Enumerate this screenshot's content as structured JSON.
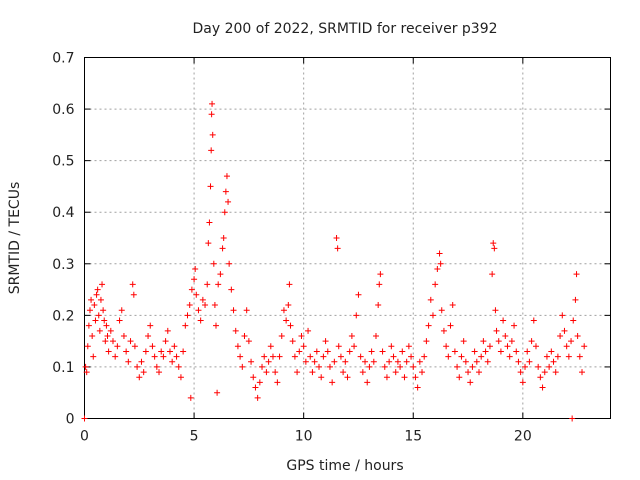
{
  "chart_data": {
    "type": "scatter",
    "title": "Day 200 of 2022, SRMTID for receiver p392",
    "xlabel": "GPS time / hours",
    "ylabel": "SRMTID / TECUs",
    "xlim": [
      0,
      24
    ],
    "ylim": [
      0,
      0.7
    ],
    "xticks": [
      0,
      5,
      10,
      15,
      20
    ],
    "yticks": [
      0,
      0.1,
      0.2,
      0.3,
      0.4,
      0.5,
      0.6,
      0.7
    ],
    "xtick_labels": [
      "0",
      "5",
      "10",
      "15",
      "20"
    ],
    "ytick_labels": [
      "0",
      "0.1",
      "0.2",
      "0.3",
      "0.4",
      "0.5",
      "0.6",
      "0.7"
    ],
    "grid": true,
    "marker": "+",
    "marker_color": "#ff0000",
    "series": [
      {
        "name": "SRMTID",
        "points": [
          [
            0.0,
            0.0
          ],
          [
            0.05,
            0.1
          ],
          [
            0.1,
            0.09
          ],
          [
            0.15,
            0.14
          ],
          [
            0.2,
            0.18
          ],
          [
            0.25,
            0.21
          ],
          [
            0.3,
            0.23
          ],
          [
            0.35,
            0.16
          ],
          [
            0.4,
            0.12
          ],
          [
            0.45,
            0.22
          ],
          [
            0.5,
            0.19
          ],
          [
            0.55,
            0.24
          ],
          [
            0.6,
            0.25
          ],
          [
            0.65,
            0.2
          ],
          [
            0.7,
            0.17
          ],
          [
            0.75,
            0.23
          ],
          [
            0.8,
            0.26
          ],
          [
            0.85,
            0.21
          ],
          [
            0.9,
            0.19
          ],
          [
            0.95,
            0.15
          ],
          [
            1.0,
            0.18
          ],
          [
            1.05,
            0.16
          ],
          [
            1.1,
            0.13
          ],
          [
            1.2,
            0.17
          ],
          [
            1.3,
            0.15
          ],
          [
            1.4,
            0.12
          ],
          [
            1.5,
            0.14
          ],
          [
            1.6,
            0.19
          ],
          [
            1.7,
            0.21
          ],
          [
            1.8,
            0.16
          ],
          [
            1.9,
            0.13
          ],
          [
            2.0,
            0.11
          ],
          [
            2.1,
            0.15
          ],
          [
            2.2,
            0.26
          ],
          [
            2.25,
            0.24
          ],
          [
            2.3,
            0.14
          ],
          [
            2.4,
            0.1
          ],
          [
            2.5,
            0.08
          ],
          [
            2.6,
            0.11
          ],
          [
            2.7,
            0.09
          ],
          [
            2.8,
            0.13
          ],
          [
            2.9,
            0.16
          ],
          [
            3.0,
            0.18
          ],
          [
            3.1,
            0.14
          ],
          [
            3.2,
            0.12
          ],
          [
            3.3,
            0.1
          ],
          [
            3.4,
            0.09
          ],
          [
            3.5,
            0.13
          ],
          [
            3.6,
            0.12
          ],
          [
            3.7,
            0.15
          ],
          [
            3.8,
            0.17
          ],
          [
            3.9,
            0.13
          ],
          [
            4.0,
            0.11
          ],
          [
            4.1,
            0.14
          ],
          [
            4.2,
            0.12
          ],
          [
            4.3,
            0.1
          ],
          [
            4.4,
            0.08
          ],
          [
            4.5,
            0.13
          ],
          [
            4.6,
            0.18
          ],
          [
            4.7,
            0.2
          ],
          [
            4.8,
            0.22
          ],
          [
            4.85,
            0.04
          ],
          [
            4.9,
            0.25
          ],
          [
            5.0,
            0.27
          ],
          [
            5.05,
            0.29
          ],
          [
            5.1,
            0.24
          ],
          [
            5.2,
            0.21
          ],
          [
            5.3,
            0.19
          ],
          [
            5.4,
            0.23
          ],
          [
            5.5,
            0.22
          ],
          [
            5.6,
            0.26
          ],
          [
            5.65,
            0.34
          ],
          [
            5.7,
            0.38
          ],
          [
            5.75,
            0.45
          ],
          [
            5.78,
            0.52
          ],
          [
            5.8,
            0.59
          ],
          [
            5.82,
            0.61
          ],
          [
            5.85,
            0.55
          ],
          [
            5.9,
            0.3
          ],
          [
            5.95,
            0.22
          ],
          [
            6.0,
            0.18
          ],
          [
            6.05,
            0.05
          ],
          [
            6.1,
            0.26
          ],
          [
            6.2,
            0.28
          ],
          [
            6.3,
            0.33
          ],
          [
            6.35,
            0.35
          ],
          [
            6.4,
            0.4
          ],
          [
            6.45,
            0.44
          ],
          [
            6.5,
            0.47
          ],
          [
            6.55,
            0.42
          ],
          [
            6.6,
            0.3
          ],
          [
            6.7,
            0.25
          ],
          [
            6.8,
            0.21
          ],
          [
            6.9,
            0.17
          ],
          [
            7.0,
            0.14
          ],
          [
            7.1,
            0.12
          ],
          [
            7.2,
            0.1
          ],
          [
            7.3,
            0.16
          ],
          [
            7.4,
            0.21
          ],
          [
            7.5,
            0.15
          ],
          [
            7.6,
            0.11
          ],
          [
            7.7,
            0.08
          ],
          [
            7.8,
            0.06
          ],
          [
            7.9,
            0.04
          ],
          [
            8.0,
            0.07
          ],
          [
            8.1,
            0.1
          ],
          [
            8.2,
            0.12
          ],
          [
            8.3,
            0.09
          ],
          [
            8.4,
            0.11
          ],
          [
            8.5,
            0.14
          ],
          [
            8.6,
            0.12
          ],
          [
            8.7,
            0.09
          ],
          [
            8.8,
            0.07
          ],
          [
            8.9,
            0.12
          ],
          [
            9.0,
            0.16
          ],
          [
            9.1,
            0.21
          ],
          [
            9.2,
            0.19
          ],
          [
            9.3,
            0.22
          ],
          [
            9.35,
            0.26
          ],
          [
            9.4,
            0.18
          ],
          [
            9.5,
            0.15
          ],
          [
            9.6,
            0.12
          ],
          [
            9.7,
            0.09
          ],
          [
            9.8,
            0.13
          ],
          [
            9.9,
            0.16
          ],
          [
            10.0,
            0.14
          ],
          [
            10.1,
            0.11
          ],
          [
            10.2,
            0.17
          ],
          [
            10.3,
            0.12
          ],
          [
            10.4,
            0.09
          ],
          [
            10.5,
            0.11
          ],
          [
            10.6,
            0.13
          ],
          [
            10.7,
            0.1
          ],
          [
            10.8,
            0.08
          ],
          [
            10.9,
            0.12
          ],
          [
            11.0,
            0.15
          ],
          [
            11.1,
            0.13
          ],
          [
            11.2,
            0.1
          ],
          [
            11.3,
            0.07
          ],
          [
            11.4,
            0.11
          ],
          [
            11.5,
            0.35
          ],
          [
            11.55,
            0.33
          ],
          [
            11.6,
            0.14
          ],
          [
            11.7,
            0.12
          ],
          [
            11.8,
            0.09
          ],
          [
            11.9,
            0.11
          ],
          [
            12.0,
            0.08
          ],
          [
            12.1,
            0.13
          ],
          [
            12.2,
            0.16
          ],
          [
            12.3,
            0.14
          ],
          [
            12.4,
            0.2
          ],
          [
            12.5,
            0.24
          ],
          [
            12.6,
            0.12
          ],
          [
            12.7,
            0.09
          ],
          [
            12.8,
            0.11
          ],
          [
            12.9,
            0.07
          ],
          [
            13.0,
            0.1
          ],
          [
            13.1,
            0.13
          ],
          [
            13.2,
            0.11
          ],
          [
            13.3,
            0.16
          ],
          [
            13.4,
            0.22
          ],
          [
            13.45,
            0.26
          ],
          [
            13.5,
            0.28
          ],
          [
            13.6,
            0.13
          ],
          [
            13.7,
            0.1
          ],
          [
            13.8,
            0.08
          ],
          [
            13.9,
            0.11
          ],
          [
            14.0,
            0.14
          ],
          [
            14.1,
            0.12
          ],
          [
            14.2,
            0.09
          ],
          [
            14.3,
            0.11
          ],
          [
            14.4,
            0.1
          ],
          [
            14.5,
            0.13
          ],
          [
            14.6,
            0.08
          ],
          [
            14.7,
            0.11
          ],
          [
            14.8,
            0.14
          ],
          [
            14.9,
            0.12
          ],
          [
            15.0,
            0.1
          ],
          [
            15.1,
            0.08
          ],
          [
            15.2,
            0.06
          ],
          [
            15.3,
            0.11
          ],
          [
            15.4,
            0.09
          ],
          [
            15.5,
            0.12
          ],
          [
            15.6,
            0.15
          ],
          [
            15.7,
            0.18
          ],
          [
            15.8,
            0.23
          ],
          [
            15.9,
            0.2
          ],
          [
            16.0,
            0.26
          ],
          [
            16.1,
            0.29
          ],
          [
            16.2,
            0.32
          ],
          [
            16.25,
            0.3
          ],
          [
            16.3,
            0.21
          ],
          [
            16.4,
            0.17
          ],
          [
            16.5,
            0.14
          ],
          [
            16.6,
            0.12
          ],
          [
            16.7,
            0.18
          ],
          [
            16.8,
            0.22
          ],
          [
            16.9,
            0.13
          ],
          [
            17.0,
            0.1
          ],
          [
            17.1,
            0.08
          ],
          [
            17.2,
            0.12
          ],
          [
            17.3,
            0.15
          ],
          [
            17.4,
            0.11
          ],
          [
            17.5,
            0.09
          ],
          [
            17.6,
            0.07
          ],
          [
            17.7,
            0.1
          ],
          [
            17.8,
            0.13
          ],
          [
            17.9,
            0.11
          ],
          [
            18.0,
            0.09
          ],
          [
            18.1,
            0.12
          ],
          [
            18.2,
            0.15
          ],
          [
            18.3,
            0.13
          ],
          [
            18.4,
            0.11
          ],
          [
            18.5,
            0.14
          ],
          [
            18.6,
            0.28
          ],
          [
            18.65,
            0.34
          ],
          [
            18.7,
            0.33
          ],
          [
            18.75,
            0.21
          ],
          [
            18.8,
            0.17
          ],
          [
            18.9,
            0.15
          ],
          [
            19.0,
            0.13
          ],
          [
            19.1,
            0.19
          ],
          [
            19.2,
            0.16
          ],
          [
            19.3,
            0.14
          ],
          [
            19.4,
            0.12
          ],
          [
            19.5,
            0.15
          ],
          [
            19.6,
            0.18
          ],
          [
            19.7,
            0.13
          ],
          [
            19.8,
            0.11
          ],
          [
            19.9,
            0.09
          ],
          [
            20.0,
            0.07
          ],
          [
            20.1,
            0.1
          ],
          [
            20.2,
            0.13
          ],
          [
            20.3,
            0.11
          ],
          [
            20.4,
            0.15
          ],
          [
            20.5,
            0.19
          ],
          [
            20.6,
            0.14
          ],
          [
            20.7,
            0.1
          ],
          [
            20.8,
            0.08
          ],
          [
            20.9,
            0.06
          ],
          [
            21.0,
            0.09
          ],
          [
            21.1,
            0.12
          ],
          [
            21.2,
            0.1
          ],
          [
            21.3,
            0.13
          ],
          [
            21.4,
            0.11
          ],
          [
            21.5,
            0.09
          ],
          [
            21.6,
            0.12
          ],
          [
            21.7,
            0.16
          ],
          [
            21.8,
            0.2
          ],
          [
            21.9,
            0.17
          ],
          [
            22.0,
            0.14
          ],
          [
            22.1,
            0.12
          ],
          [
            22.2,
            0.15
          ],
          [
            22.25,
            0.0
          ],
          [
            22.3,
            0.19
          ],
          [
            22.4,
            0.23
          ],
          [
            22.45,
            0.28
          ],
          [
            22.5,
            0.16
          ],
          [
            22.6,
            0.12
          ],
          [
            22.7,
            0.09
          ],
          [
            22.8,
            0.14
          ]
        ]
      }
    ]
  }
}
